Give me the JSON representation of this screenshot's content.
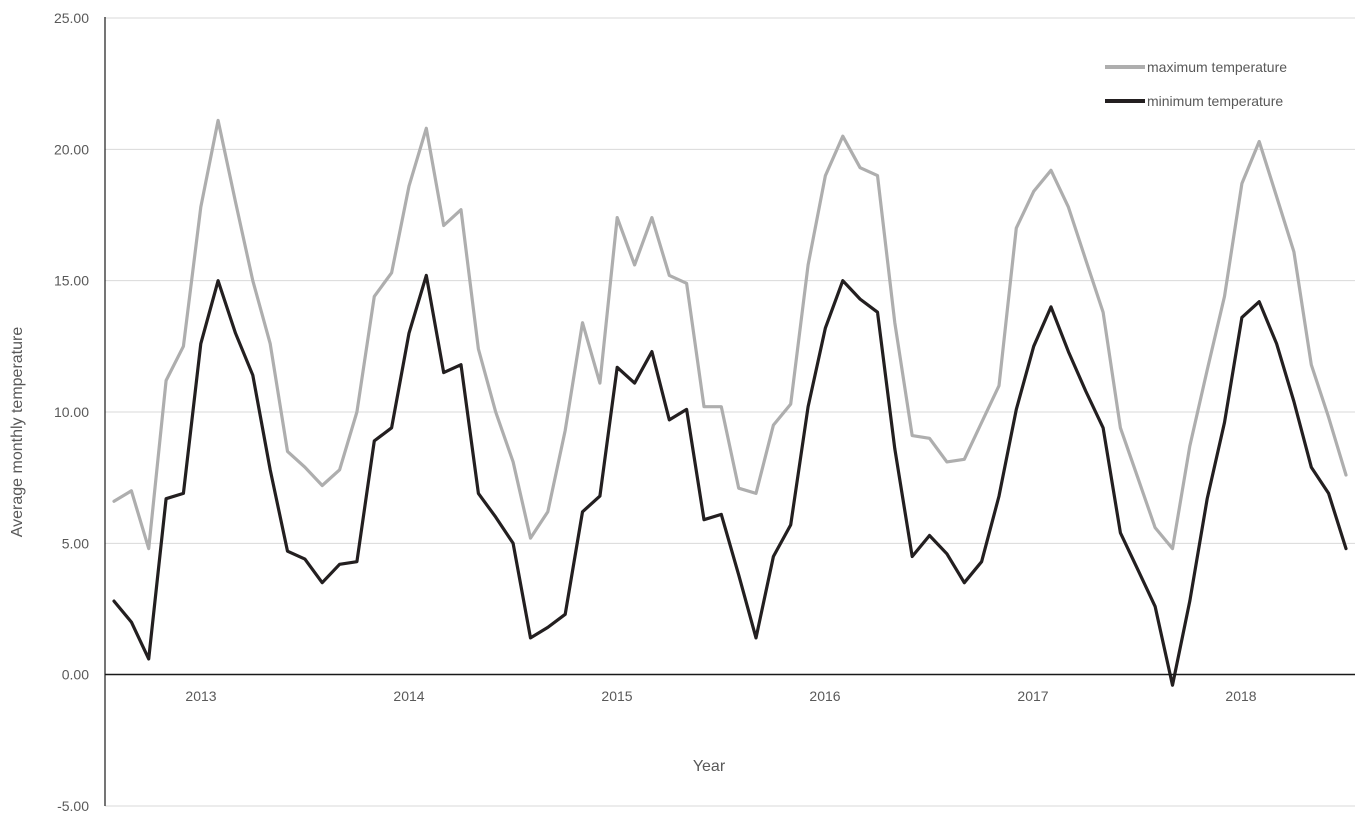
{
  "chart_data": {
    "type": "line",
    "title": "",
    "xlabel": "Year",
    "ylabel": "Average monthly temperature",
    "ylim": [
      -5,
      25
    ],
    "y_ticks": [
      "25.00",
      "20.00",
      "15.00",
      "10.00",
      "5.00",
      "0.00",
      "-5.00"
    ],
    "x_tick_labels": [
      "2013",
      "2014",
      "2015",
      "2016",
      "2017",
      "2018"
    ],
    "grid": true,
    "legend_position": "top-right",
    "series": [
      {
        "name": "maximum temperature",
        "color": "#aeaeae",
        "values": [
          6.6,
          7.0,
          4.8,
          11.2,
          12.5,
          17.8,
          21.1,
          18.0,
          15.0,
          12.6,
          8.5,
          7.9,
          7.2,
          7.8,
          10.0,
          14.4,
          15.3,
          18.6,
          20.8,
          17.1,
          17.7,
          12.4,
          10.0,
          8.1,
          5.2,
          6.2,
          9.3,
          13.4,
          11.1,
          17.4,
          15.6,
          17.4,
          15.2,
          14.9,
          10.2,
          10.2,
          7.1,
          6.9,
          9.5,
          10.3,
          15.6,
          19.0,
          20.5,
          19.3,
          19.0,
          13.4,
          9.1,
          9.0,
          8.1,
          8.2,
          9.6,
          11.0,
          17.0,
          18.4,
          19.2,
          17.8,
          15.8,
          13.8,
          9.4,
          7.5,
          5.6,
          4.8,
          8.7,
          11.6,
          14.4,
          18.7,
          20.3,
          18.2,
          16.1,
          11.8,
          9.8,
          7.6
        ]
      },
      {
        "name": "minimum temperature",
        "color": "#231f20",
        "values": [
          2.8,
          2.0,
          0.6,
          6.7,
          6.9,
          12.6,
          15.0,
          13.0,
          11.4,
          7.8,
          4.7,
          4.4,
          3.5,
          4.2,
          4.3,
          8.9,
          9.4,
          13.0,
          15.2,
          11.5,
          11.8,
          6.9,
          6.0,
          5.0,
          1.4,
          1.8,
          2.3,
          6.2,
          6.8,
          11.7,
          11.1,
          12.3,
          9.7,
          10.1,
          5.9,
          6.1,
          3.8,
          1.4,
          4.5,
          5.7,
          10.2,
          13.2,
          15.0,
          14.3,
          13.8,
          8.6,
          4.5,
          5.3,
          4.6,
          3.5,
          4.3,
          6.8,
          10.1,
          12.5,
          14.0,
          12.3,
          10.8,
          9.4,
          5.4,
          4.0,
          2.6,
          -0.4,
          2.8,
          6.7,
          9.6,
          13.6,
          14.2,
          12.6,
          10.4,
          7.9,
          6.9,
          4.8
        ]
      }
    ]
  }
}
